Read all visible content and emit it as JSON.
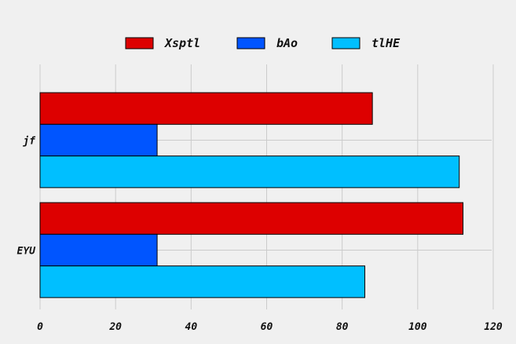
{
  "chart_data": {
    "type": "bar",
    "orientation": "horizontal",
    "categories": [
      "jf",
      "EYU"
    ],
    "series": [
      {
        "name": "Xsptl",
        "values": [
          88,
          112
        ],
        "color": "#dd0000"
      },
      {
        "name": "bAo",
        "values": [
          31,
          31
        ],
        "color": "#0055ff"
      },
      {
        "name": "tlHE",
        "values": [
          111,
          86
        ],
        "color": "#00bfff"
      }
    ],
    "xlim": [
      0,
      120
    ],
    "xticks": [
      "0",
      "20",
      "40",
      "60",
      "80",
      "100",
      "120"
    ],
    "grid": true,
    "legend_position": "top-center",
    "title": "",
    "xlabel": "",
    "ylabel": ""
  }
}
